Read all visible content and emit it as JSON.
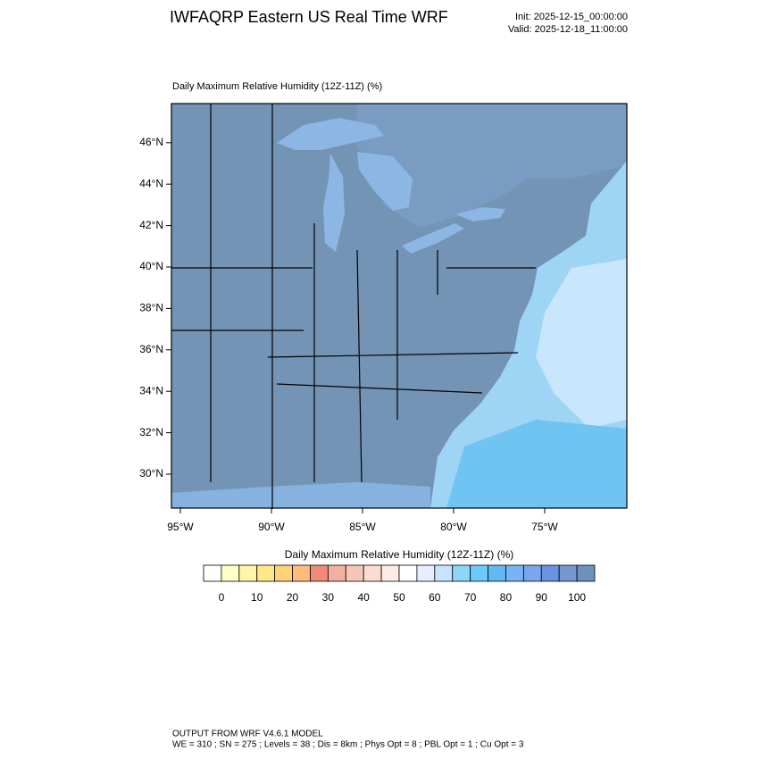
{
  "header": {
    "title": "IWFAQRP Eastern US Real Time WRF",
    "init": "Init: 2025-12-15_00:00:00",
    "valid": "Valid: 2025-12-18_11:00:00"
  },
  "map": {
    "title": "Daily Maximum Relative Humidity (12Z-11Z)   (%)",
    "lat_ticks": [
      {
        "value": 30,
        "label": "30°N"
      },
      {
        "value": 32,
        "label": "32°N"
      },
      {
        "value": 34,
        "label": "34°N"
      },
      {
        "value": 36,
        "label": "36°N"
      },
      {
        "value": 38,
        "label": "38°N"
      },
      {
        "value": 40,
        "label": "40°N"
      },
      {
        "value": 42,
        "label": "42°N"
      },
      {
        "value": 44,
        "label": "44°N"
      },
      {
        "value": 46,
        "label": "46°N"
      }
    ],
    "lon_ticks": [
      {
        "value": -95,
        "label": "95°W"
      },
      {
        "value": -90,
        "label": "90°W"
      },
      {
        "value": -85,
        "label": "85°W"
      },
      {
        "value": -80,
        "label": "80°W"
      },
      {
        "value": -75,
        "label": "75°W"
      }
    ]
  },
  "colorbar": {
    "title": "Daily Maximum Relative Humidity (12Z-11Z)  (%)",
    "ticks": [
      0,
      10,
      20,
      30,
      40,
      50,
      60,
      70,
      80,
      90,
      100
    ],
    "colors": [
      "#ffffff",
      "#ffffc8",
      "#fff5a8",
      "#ffe888",
      "#ffd278",
      "#ffbc78",
      "#f08a78",
      "#f2b0a0",
      "#f6c6b8",
      "#fadcd2",
      "#fcece8",
      "#ffffff",
      "#e6eeff",
      "#c8e4fc",
      "#8ed6f8",
      "#6ccaf8",
      "#62b8f2",
      "#78b4f4",
      "#7aa6ec",
      "#6a94e0",
      "#7698d0",
      "#6c92bc"
    ]
  },
  "footer": {
    "line1": "OUTPUT FROM WRF V4.6.1 MODEL",
    "line2": "WE = 310 ; SN = 275 ; Levels = 38 ; Dis = 8km ; Phys Opt = 8 ; PBL Opt = 1 ; Cu Opt = 3"
  }
}
